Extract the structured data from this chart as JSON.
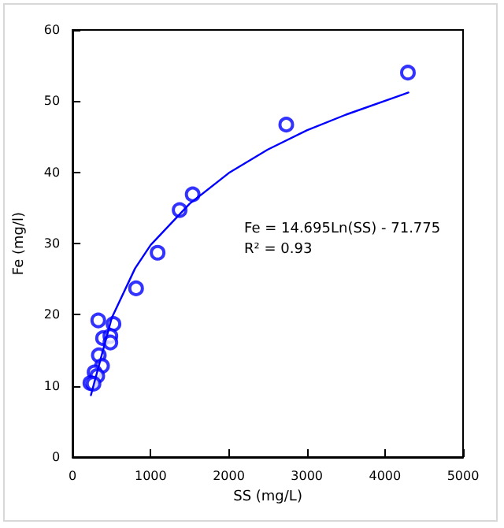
{
  "chart_data": {
    "type": "scatter",
    "xlabel": "SS (mg/L)",
    "ylabel": "Fe (mg/l)",
    "xlim": [
      0,
      5000
    ],
    "xticks": [
      0,
      1000,
      2000,
      3000,
      4000,
      5000
    ],
    "ylim": [
      0,
      60
    ],
    "yticks": [
      0,
      10,
      20,
      30,
      40,
      50,
      60
    ],
    "marker": "circle",
    "annotations": [
      "Fe = 14.695Ln(SS) - 71.775",
      "R² = 0.93"
    ],
    "series": [
      {
        "color": "#0000ff",
        "x": [
          4294,
          2736,
          1538,
          1371,
          1089,
          813,
          329,
          524,
          390,
          484,
          484,
          336,
          377,
          282,
          316,
          228,
          268
        ],
        "values": [
          54.0,
          46.7,
          36.9,
          34.7,
          28.7,
          23.7,
          19.2,
          18.7,
          16.7,
          17.0,
          16.1,
          14.3,
          12.8,
          11.9,
          11.4,
          10.4,
          10.3
        ]
      },
      {
        "type": "line",
        "color": "#0000ff",
        "marker": "none",
        "x": [
          235,
          500,
          800,
          1000,
          1500,
          2000,
          2500,
          3000,
          3500,
          4300
        ],
        "values": [
          8.7,
          19.5,
          26.5,
          29.8,
          35.6,
          39.9,
          43.2,
          45.9,
          48.1,
          51.2
        ]
      }
    ]
  }
}
